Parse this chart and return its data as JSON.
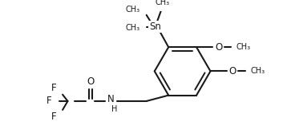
{
  "background_color": "#ffffff",
  "line_color": "#1a1a1a",
  "line_width": 1.5,
  "font_size": 8.5,
  "figsize": [
    3.58,
    1.72
  ],
  "dpi": 100,
  "xlim": [
    0,
    358
  ],
  "ylim": [
    0,
    172
  ]
}
